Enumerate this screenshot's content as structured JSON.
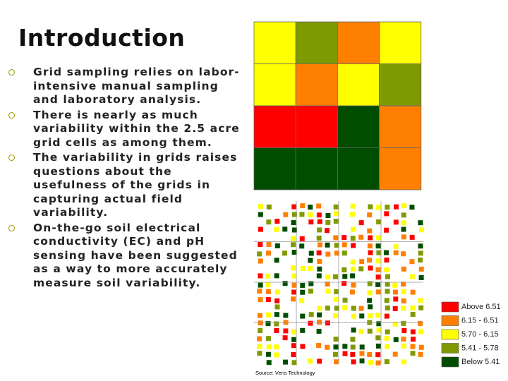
{
  "title": "Introduction",
  "bullets": [
    "Grid sampling  relies on labor-intensive manual sampling and laboratory analysis.",
    "There is nearly as much variability within the 2.5 acre grid cells as among them.",
    "The variability in grids raises questions about the usefulness of the grids in capturing actual field variability.",
    "On-the-go soil electrical conductivity (EC) and pH sensing have been suggested as a way to more accurately measure soil variability."
  ],
  "grid_colors": [
    [
      "#ffff00",
      "#7f9a00",
      "#ff7f00",
      "#ffff00"
    ],
    [
      "#ffff00",
      "#ff7f00",
      "#ffff00",
      "#7f9a00"
    ],
    [
      "#ff0000",
      "#ff0000",
      "#004d00",
      "#ff7f00"
    ],
    [
      "#004d00",
      "#004d00",
      "#004d00",
      "#ff7f00"
    ]
  ],
  "legend": [
    {
      "label": "Above 6.51",
      "color": "#ff0000"
    },
    {
      "label": "6.15 - 6.51",
      "color": "#ff7f00"
    },
    {
      "label": "5.70 - 6.15",
      "color": "#ffff00"
    },
    {
      "label": "5.41 - 5.78",
      "color": "#7f9a00"
    },
    {
      "label": "Below 5.41",
      "color": "#004d00"
    }
  ],
  "source": "Source: Veris Technology"
}
